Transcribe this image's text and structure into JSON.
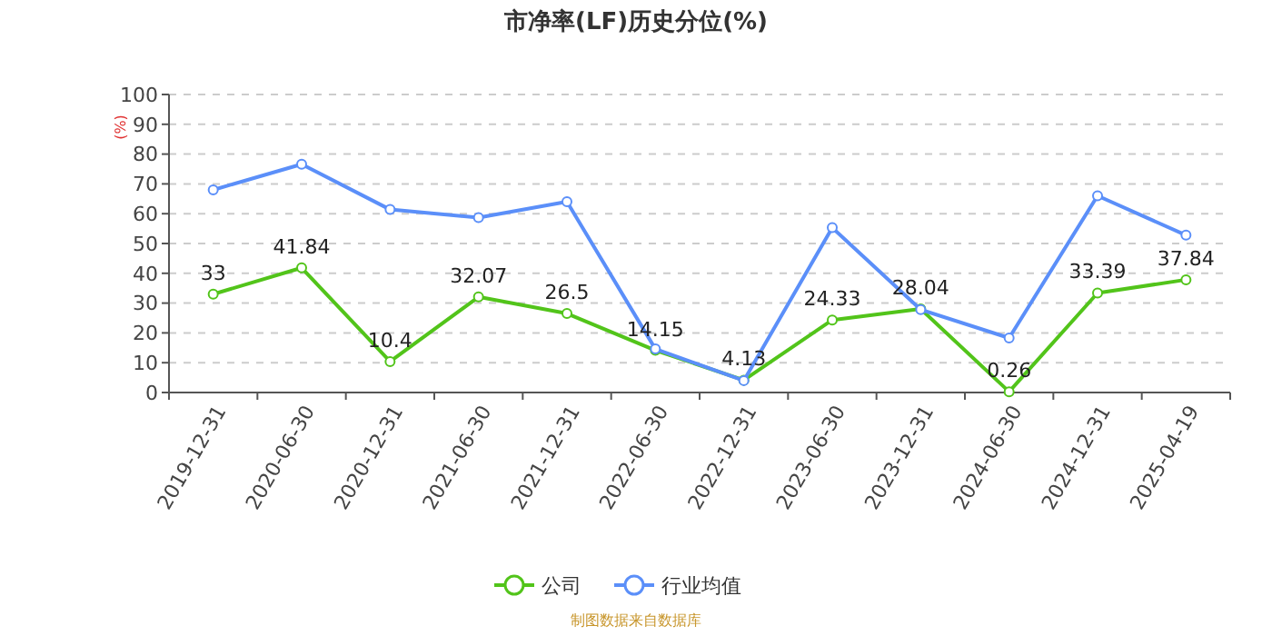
{
  "chart_data": {
    "type": "line",
    "title": "市净率(LF)历史分位(%)",
    "ylabel": "(%)",
    "categories": [
      "2019-12-31",
      "2020-06-30",
      "2020-12-31",
      "2021-06-30",
      "2021-12-31",
      "2022-06-30",
      "2022-12-31",
      "2023-06-30",
      "2023-12-31",
      "2024-06-30",
      "2024-12-31",
      "2025-04-19"
    ],
    "series": [
      {
        "name": "公司",
        "color": "#52c41a",
        "values": [
          33,
          41.84,
          10.4,
          32.07,
          26.5,
          14.15,
          4.13,
          24.33,
          28.04,
          0.26,
          33.39,
          37.84
        ],
        "value_labels": [
          "33",
          "41.84",
          "10.4",
          "32.07",
          "26.5",
          "14.15",
          "4.13",
          "24.33",
          "28.04",
          "0.26",
          "33.39",
          "37.84"
        ]
      },
      {
        "name": "行业均值",
        "color": "#5b8ff9",
        "values": [
          68,
          76.6,
          61.4,
          58.7,
          64,
          14.6,
          4,
          55.3,
          27.8,
          18.3,
          66,
          52.8
        ]
      }
    ],
    "ylim": [
      0,
      100
    ],
    "yticks": [
      0,
      10,
      20,
      30,
      40,
      50,
      60,
      70,
      80,
      90,
      100
    ],
    "grid": "y",
    "legend": "bottom",
    "marker": "circle",
    "line_style": "solid",
    "annotations": [
      "制图数据来自数据库"
    ]
  }
}
